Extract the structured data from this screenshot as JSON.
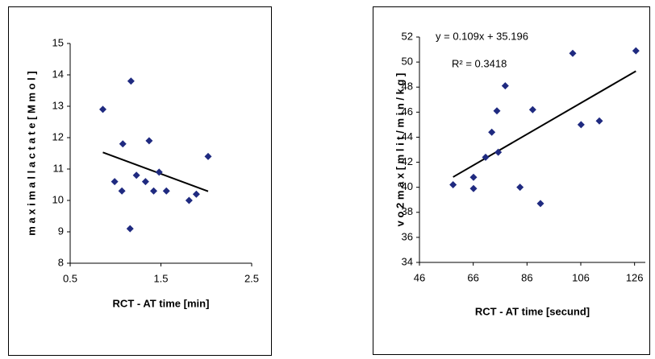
{
  "chart_data": [
    {
      "type": "scatter",
      "x_label": "RCT - AT time [min]",
      "y_label": "m a x i m a l  l a c t a t e  [ M m o l ]",
      "x": [
        0.86,
        0.99,
        1.08,
        1.07,
        1.17,
        1.16,
        1.23,
        1.33,
        1.37,
        1.42,
        1.48,
        1.56,
        1.81,
        1.89,
        2.02
      ],
      "values": [
        12.9,
        10.6,
        11.8,
        10.3,
        13.8,
        9.1,
        10.8,
        10.6,
        11.9,
        10.3,
        10.9,
        10.3,
        10.0,
        10.2,
        11.4
      ],
      "color": "#1f2a80",
      "trendline": true,
      "xlim": [
        0.5,
        2.5
      ],
      "xticks": [
        0.5,
        1.5,
        2.5
      ],
      "ylim": [
        8,
        15
      ],
      "yticks": [
        8,
        9,
        10,
        11,
        12,
        13,
        14,
        15
      ]
    },
    {
      "type": "scatter",
      "x_label": "RCT - AT time [secund]",
      "y_label": "v o 2 m a x  [  m l i t / m i n / k g  ]",
      "annotations": [
        "y = 0.109x + 35.196",
        "R² = 0.3418"
      ],
      "x": [
        58.5,
        66.1,
        66.1,
        70.6,
        72.9,
        74.8,
        75.3,
        77.9,
        83.4,
        88.1,
        91.0,
        103.0,
        106.1,
        112.9,
        126.5
      ],
      "values": [
        40.2,
        40.8,
        39.9,
        42.4,
        44.4,
        46.1,
        42.8,
        48.1,
        40.0,
        46.2,
        38.7,
        50.7,
        45.0,
        45.3,
        50.9
      ],
      "color": "#1f2a80",
      "trendline": true,
      "xlim": [
        46,
        130
      ],
      "xticks": [
        46,
        66,
        86,
        106,
        126
      ],
      "ylim": [
        34,
        52
      ],
      "yticks": [
        34,
        36,
        38,
        40,
        42,
        44,
        46,
        48,
        50,
        52
      ]
    }
  ]
}
